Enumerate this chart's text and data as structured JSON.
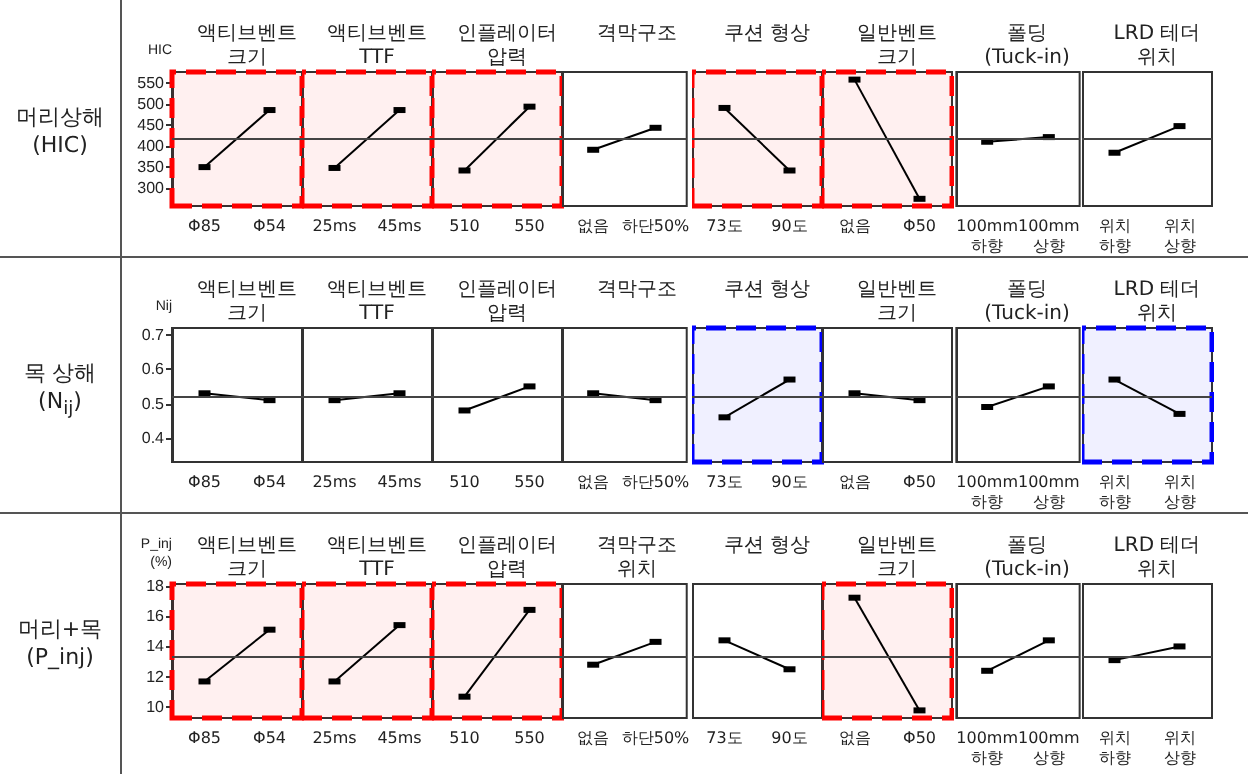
{
  "chart_data": [
    {
      "type": "line",
      "title": "액티브벤트\n크기",
      "ylabel": "HIC",
      "annotations": [
        "머리상해\n(HIC)"
      ],
      "categories": [
        "Φ85",
        "Φ54"
      ],
      "series": [
        {
          "color": "#000000",
          "values": [
            350,
            485
          ]
        }
      ],
      "ylim": [
        258,
        575
      ],
      "yticks": [
        300,
        350,
        400,
        450,
        500,
        550
      ],
      "ref_lines": [
        {
          "axis": "y",
          "value": 416
        }
      ],
      "bands": [
        {
          "axis": "y",
          "from": 258,
          "to": 575,
          "color": "#ff0000"
        }
      ],
      "marker": "square"
    },
    {
      "type": "line",
      "title": "액티브벤트\nTTF",
      "categories": [
        "25ms",
        "45ms"
      ],
      "series": [
        {
          "color": "#000000",
          "values": [
            348,
            485
          ]
        }
      ],
      "ylim": [
        258,
        575
      ],
      "ref_lines": [
        {
          "axis": "y",
          "value": 416
        }
      ],
      "bands": [
        {
          "axis": "y",
          "from": 258,
          "to": 575,
          "color": "#ff0000"
        }
      ],
      "marker": "square",
      "tick_labels": "x"
    },
    {
      "type": "line",
      "title": "인플레이터\n압력",
      "categories": [
        "510",
        "550"
      ],
      "series": [
        {
          "color": "#000000",
          "values": [
            342,
            493
          ]
        }
      ],
      "ylim": [
        258,
        575
      ],
      "ref_lines": [
        {
          "axis": "y",
          "value": 416
        }
      ],
      "bands": [
        {
          "axis": "y",
          "from": 258,
          "to": 575,
          "color": "#ff0000"
        }
      ],
      "marker": "square",
      "tick_labels": "x"
    },
    {
      "type": "line",
      "title": "격막구조",
      "categories": [
        "없음",
        "하단50%"
      ],
      "series": [
        {
          "color": "#000000",
          "values": [
            391,
            443
          ]
        }
      ],
      "ylim": [
        258,
        575
      ],
      "ref_lines": [
        {
          "axis": "y",
          "value": 416
        }
      ],
      "marker": "square",
      "tick_labels": "x"
    },
    {
      "type": "line",
      "title": "쿠션 형상",
      "categories": [
        "73도",
        "90도"
      ],
      "series": [
        {
          "color": "#000000",
          "values": [
            490,
            342
          ]
        }
      ],
      "ylim": [
        258,
        575
      ],
      "ref_lines": [
        {
          "axis": "y",
          "value": 416
        }
      ],
      "bands": [
        {
          "axis": "y",
          "from": 258,
          "to": 575,
          "color": "#ff0000"
        }
      ],
      "marker": "square",
      "tick_labels": "x"
    },
    {
      "type": "line",
      "title": "일반벤트\n크기",
      "categories": [
        "없음",
        "Φ50"
      ],
      "series": [
        {
          "color": "#000000",
          "values": [
            557,
            275
          ]
        }
      ],
      "ylim": [
        258,
        575
      ],
      "ref_lines": [
        {
          "axis": "y",
          "value": 416
        }
      ],
      "bands": [
        {
          "axis": "y",
          "from": 258,
          "to": 575,
          "color": "#ff0000"
        }
      ],
      "marker": "square",
      "tick_labels": "x"
    },
    {
      "type": "line",
      "title": "폴딩\n(Tuck-in)",
      "categories": [
        "100mm\n하향",
        "100mm\n상향"
      ],
      "series": [
        {
          "color": "#000000",
          "values": [
            410,
            421
          ]
        }
      ],
      "ylim": [
        258,
        575
      ],
      "ref_lines": [
        {
          "axis": "y",
          "value": 416
        }
      ],
      "marker": "square",
      "tick_labels": "x"
    },
    {
      "type": "line",
      "title": "LRD 테더\n위치",
      "categories": [
        "위치\n하향",
        "위치\n상향"
      ],
      "series": [
        {
          "color": "#000000",
          "values": [
            384,
            447
          ]
        }
      ],
      "ylim": [
        258,
        575
      ],
      "ref_lines": [
        {
          "axis": "y",
          "value": 416
        }
      ],
      "marker": "square",
      "tick_labels": "x"
    },
    {
      "type": "line",
      "title": "액티브벤트\n크기",
      "ylabel": "Nij",
      "annotations": [
        "목 상해\n(N$_{ij}$)"
      ],
      "categories": [
        "Φ85",
        "Φ54"
      ],
      "series": [
        {
          "color": "#000000",
          "values": [
            0.53,
            0.51
          ]
        }
      ],
      "ylim": [
        0.33,
        0.72
      ],
      "yticks": [
        0.4,
        0.5,
        0.6,
        0.7
      ],
      "ref_lines": [
        {
          "axis": "y",
          "value": 0.52
        }
      ],
      "marker": "square"
    },
    {
      "type": "line",
      "title": "액티브벤트\nTTF",
      "categories": [
        "25ms",
        "45ms"
      ],
      "series": [
        {
          "color": "#000000",
          "values": [
            0.51,
            0.53
          ]
        }
      ],
      "ylim": [
        0.33,
        0.72
      ],
      "ref_lines": [
        {
          "axis": "y",
          "value": 0.52
        }
      ],
      "marker": "square",
      "tick_labels": "x"
    },
    {
      "type": "line",
      "title": "인플레이터\n압력",
      "categories": [
        "510",
        "550"
      ],
      "series": [
        {
          "color": "#000000",
          "values": [
            0.48,
            0.55
          ]
        }
      ],
      "ylim": [
        0.33,
        0.72
      ],
      "ref_lines": [
        {
          "axis": "y",
          "value": 0.52
        }
      ],
      "marker": "square",
      "tick_labels": "x"
    },
    {
      "type": "line",
      "title": "격막구조",
      "categories": [
        "없음",
        "하단50%"
      ],
      "series": [
        {
          "color": "#000000",
          "values": [
            0.53,
            0.51
          ]
        }
      ],
      "ylim": [
        0.33,
        0.72
      ],
      "ref_lines": [
        {
          "axis": "y",
          "value": 0.52
        }
      ],
      "marker": "square",
      "tick_labels": "x"
    },
    {
      "type": "line",
      "title": "쿠션 형상",
      "categories": [
        "73도",
        "90도"
      ],
      "series": [
        {
          "color": "#000000",
          "values": [
            0.46,
            0.57
          ]
        }
      ],
      "ylim": [
        0.33,
        0.72
      ],
      "ref_lines": [
        {
          "axis": "y",
          "value": 0.52
        }
      ],
      "bands": [
        {
          "axis": "y",
          "from": 0.33,
          "to": 0.72,
          "color": "#0000ff"
        }
      ],
      "marker": "square",
      "tick_labels": "x"
    },
    {
      "type": "line",
      "title": "일반벤트\n크기",
      "categories": [
        "없음",
        "Φ50"
      ],
      "series": [
        {
          "color": "#000000",
          "values": [
            0.53,
            0.51
          ]
        }
      ],
      "ylim": [
        0.33,
        0.72
      ],
      "ref_lines": [
        {
          "axis": "y",
          "value": 0.52
        }
      ],
      "marker": "square",
      "tick_labels": "x"
    },
    {
      "type": "line",
      "title": "폴딩\n(Tuck-in)",
      "categories": [
        "100mm\n하향",
        "100mm\n상향"
      ],
      "series": [
        {
          "color": "#000000",
          "values": [
            0.49,
            0.55
          ]
        }
      ],
      "ylim": [
        0.33,
        0.72
      ],
      "ref_lines": [
        {
          "axis": "y",
          "value": 0.52
        }
      ],
      "marker": "square",
      "tick_labels": "x"
    },
    {
      "type": "line",
      "title": "LRD 테더\n위치",
      "categories": [
        "위치\n하향",
        "위치\n상향"
      ],
      "series": [
        {
          "color": "#000000",
          "values": [
            0.57,
            0.47
          ]
        }
      ],
      "ylim": [
        0.33,
        0.72
      ],
      "ref_lines": [
        {
          "axis": "y",
          "value": 0.52
        }
      ],
      "bands": [
        {
          "axis": "y",
          "from": 0.33,
          "to": 0.72,
          "color": "#0000ff"
        }
      ],
      "marker": "square",
      "tick_labels": "x"
    },
    {
      "type": "line",
      "title": "액티브벤트\n크기",
      "ylabel": "P_inj\n(%)",
      "annotations": [
        "머리+목\n(P_inj)"
      ],
      "categories": [
        "Φ85",
        "Φ54"
      ],
      "series": [
        {
          "color": "#000000",
          "values": [
            11.7,
            15.1
          ]
        }
      ],
      "ylim": [
        9.3,
        18.1
      ],
      "yticks": [
        10,
        12,
        14,
        16,
        18
      ],
      "ref_lines": [
        {
          "axis": "y",
          "value": 13.4
        }
      ],
      "bands": [
        {
          "axis": "y",
          "from": 9.3,
          "to": 18.1,
          "color": "#ff0000"
        }
      ],
      "marker": "square"
    },
    {
      "type": "line",
      "title": "액티브벤트\nTTF",
      "categories": [
        "25ms",
        "45ms"
      ],
      "series": [
        {
          "color": "#000000",
          "values": [
            11.7,
            15.4
          ]
        }
      ],
      "ylim": [
        9.3,
        18.1
      ],
      "ref_lines": [
        {
          "axis": "y",
          "value": 13.4
        }
      ],
      "bands": [
        {
          "axis": "y",
          "from": 9.3,
          "to": 18.1,
          "color": "#ff0000"
        }
      ],
      "marker": "square",
      "tick_labels": "x"
    },
    {
      "type": "line",
      "title": "인플레이터\n압력",
      "categories": [
        "510",
        "550"
      ],
      "series": [
        {
          "color": "#000000",
          "values": [
            10.7,
            16.4
          ]
        }
      ],
      "ylim": [
        9.3,
        18.1
      ],
      "ref_lines": [
        {
          "axis": "y",
          "value": 13.4
        }
      ],
      "bands": [
        {
          "axis": "y",
          "from": 9.3,
          "to": 18.1,
          "color": "#ff0000"
        }
      ],
      "marker": "square",
      "tick_labels": "x"
    },
    {
      "type": "line",
      "title": "격막구조\n위치",
      "categories": [
        "없음",
        "하단50%"
      ],
      "series": [
        {
          "color": "#000000",
          "values": [
            12.8,
            14.3
          ]
        }
      ],
      "ylim": [
        9.3,
        18.1
      ],
      "ref_lines": [
        {
          "axis": "y",
          "value": 13.4
        }
      ],
      "marker": "square",
      "tick_labels": "x"
    },
    {
      "type": "line",
      "title": "쿠션 형상",
      "categories": [
        "73도",
        "90도"
      ],
      "series": [
        {
          "color": "#000000",
          "values": [
            14.4,
            12.5
          ]
        }
      ],
      "ylim": [
        9.3,
        18.1
      ],
      "ref_lines": [
        {
          "axis": "y",
          "value": 13.4
        }
      ],
      "marker": "square",
      "tick_labels": "x"
    },
    {
      "type": "line",
      "title": "일반벤트\n크기",
      "categories": [
        "없음",
        "Φ50"
      ],
      "series": [
        {
          "color": "#000000",
          "values": [
            17.2,
            9.8
          ]
        }
      ],
      "ylim": [
        9.3,
        18.1
      ],
      "ref_lines": [
        {
          "axis": "y",
          "value": 13.4
        }
      ],
      "bands": [
        {
          "axis": "y",
          "from": 9.3,
          "to": 18.1,
          "color": "#ff0000"
        }
      ],
      "marker": "square",
      "tick_labels": "x"
    },
    {
      "type": "line",
      "title": "폴딩\n(Tuck-in)",
      "categories": [
        "100mm\n하향",
        "100mm\n상향"
      ],
      "series": [
        {
          "color": "#000000",
          "values": [
            12.4,
            14.4
          ]
        }
      ],
      "ylim": [
        9.3,
        18.1
      ],
      "ref_lines": [
        {
          "axis": "y",
          "value": 13.4
        }
      ],
      "marker": "square",
      "tick_labels": "x"
    },
    {
      "type": "line",
      "title": "LRD 테더\n위치",
      "categories": [
        "위치\n하향",
        "위치\n상향"
      ],
      "series": [
        {
          "color": "#000000",
          "values": [
            13.1,
            14.0
          ]
        }
      ],
      "ylim": [
        9.3,
        18.1
      ],
      "ref_lines": [
        {
          "axis": "y",
          "value": 13.4
        }
      ],
      "marker": "square",
      "tick_labels": "x"
    }
  ]
}
